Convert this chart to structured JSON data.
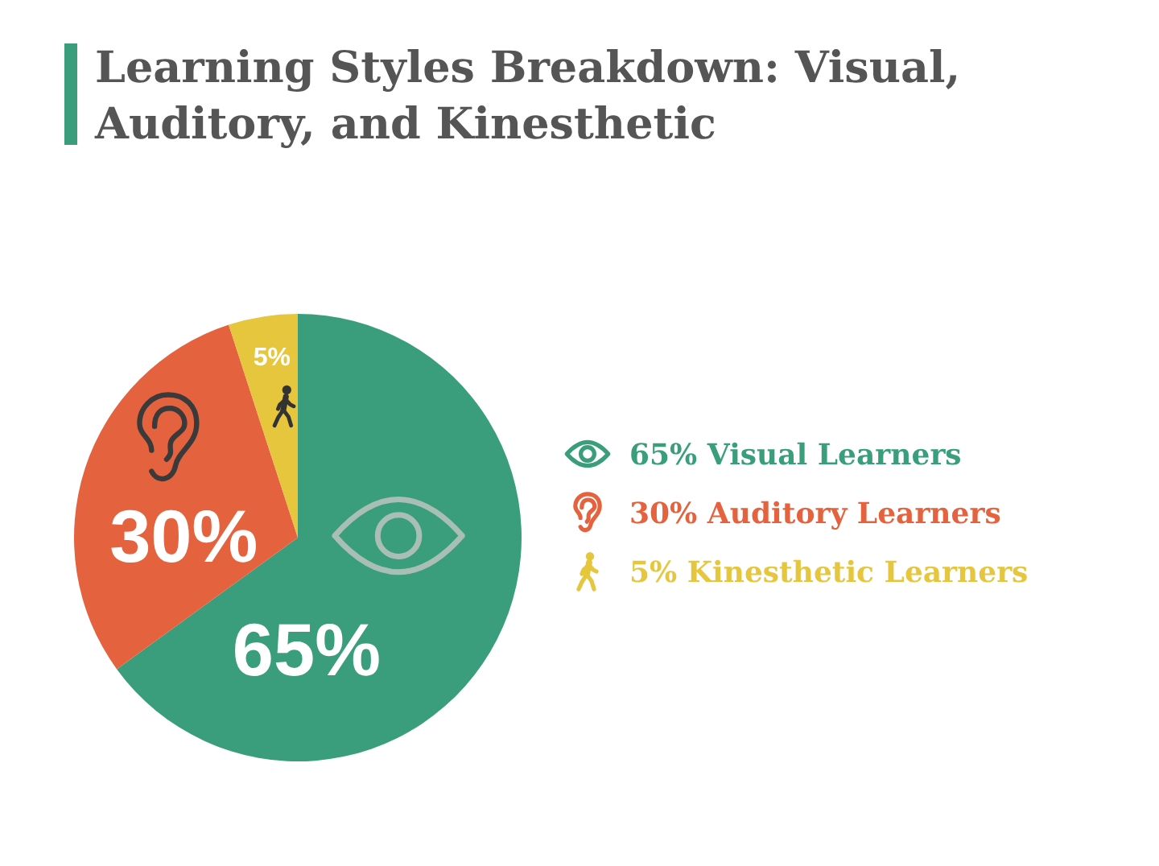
{
  "chart_data": {
    "type": "pie",
    "title": "Learning Styles Breakdown: Visual, Auditory, and Kinesthetic",
    "categories": [
      "Visual Learners",
      "Auditory Learners",
      "Kinesthetic Learners"
    ],
    "values": [
      65,
      30,
      5
    ],
    "colors": [
      "#3a9e7c",
      "#e5623e",
      "#e6c63c"
    ],
    "value_labels": [
      "65%",
      "30%",
      "5%"
    ],
    "legend": "right"
  }
}
